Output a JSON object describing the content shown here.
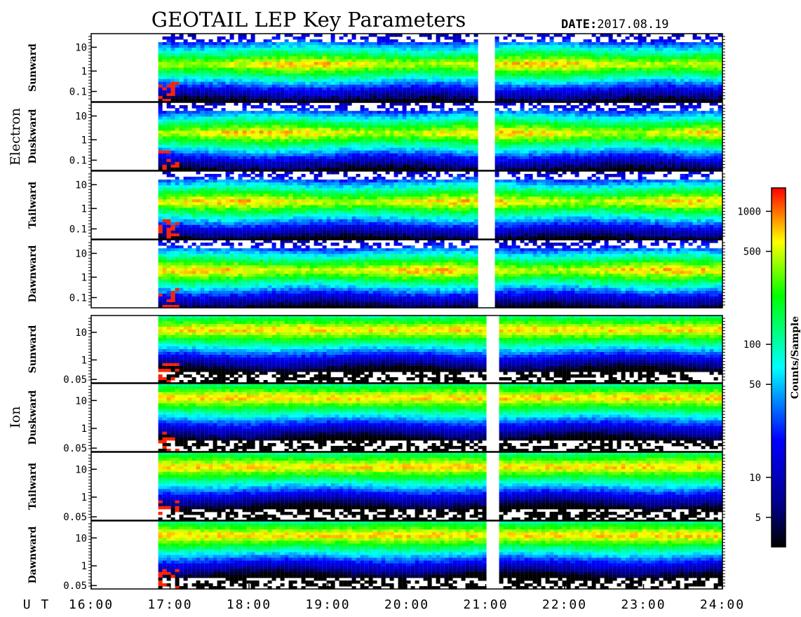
{
  "header": {
    "title": "GEOTAIL LEP Key Parameters",
    "date_key": "DATE:",
    "date_value": "2017.08.19"
  },
  "chart_data": {
    "type": "heatmap",
    "title": "GEOTAIL LEP Key Parameters",
    "date": "2017.08.19",
    "x_axis": {
      "label": "U T",
      "range": [
        "16:00",
        "24:00"
      ],
      "ticks": [
        "16:00",
        "17:00",
        "18:00",
        "19:00",
        "20:00",
        "21:00",
        "22:00",
        "23:00",
        "24:00"
      ]
    },
    "groups": [
      {
        "name": "Electron",
        "y_scale": "log",
        "y_ticks": [
          "10",
          "1",
          "0.1"
        ],
        "panels": [
          {
            "name": "Sunward"
          },
          {
            "name": "Duskward"
          },
          {
            "name": "Tailward"
          },
          {
            "name": "Dawnward"
          }
        ]
      },
      {
        "name": "Ion",
        "y_scale": "log",
        "y_ticks": [
          "10",
          "1",
          "0.05"
        ],
        "panels": [
          {
            "name": "Sunward"
          },
          {
            "name": "Duskward"
          },
          {
            "name": "Tailward"
          },
          {
            "name": "Dawnward"
          }
        ]
      }
    ],
    "data_start_hour": 16.85,
    "electron_gaps_hours": [
      [
        20.9,
        21.1
      ]
    ],
    "ion_gaps_hours": [
      [
        21.0,
        21.15
      ]
    ],
    "colorbar": {
      "label": "Counts/Sample",
      "scale": "log",
      "range": [
        3,
        1500
      ],
      "ticks": [
        "1000",
        "500",
        "100",
        "50",
        "10",
        "5"
      ],
      "tick_values": [
        1000,
        500,
        100,
        50,
        10,
        5
      ],
      "colormap": [
        "#000000",
        "#0000ff",
        "#00ffff",
        "#00ff00",
        "#ffff00",
        "#ff0000"
      ]
    }
  }
}
